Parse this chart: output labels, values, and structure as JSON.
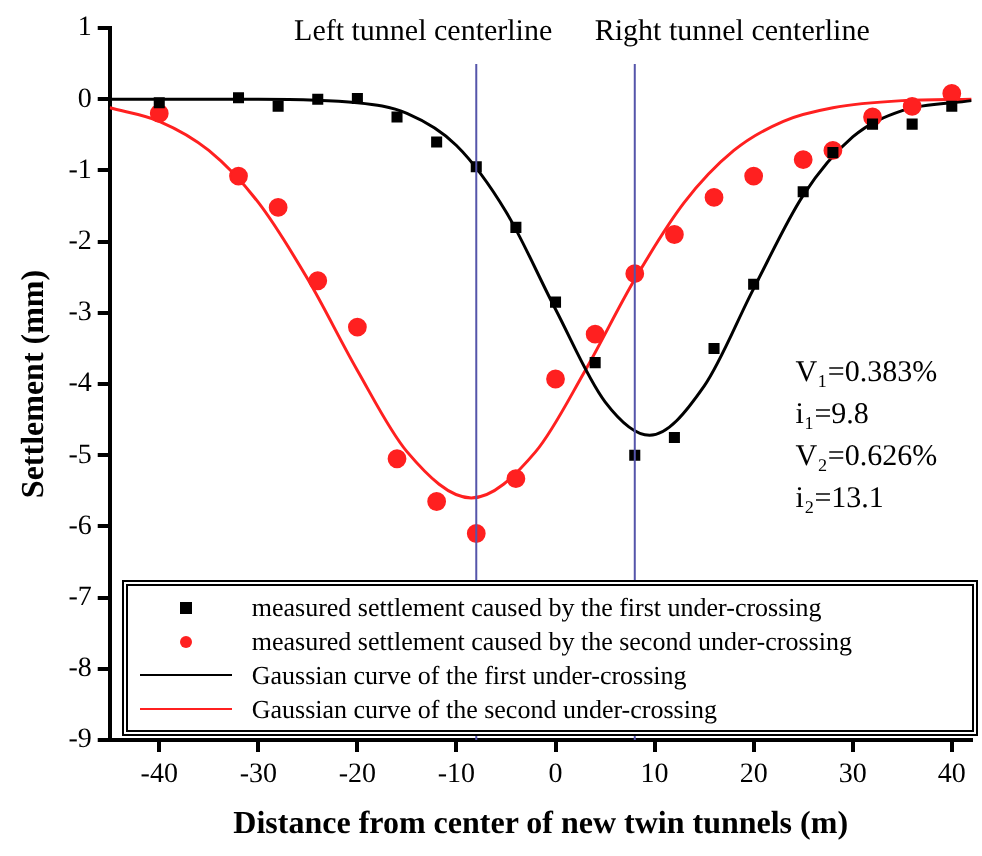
{
  "chart_data": {
    "type": "scatter",
    "xlabel": "Distance from center of new twin tunnels (m)",
    "ylabel": "Settlement (mm)",
    "xlim": [
      -45,
      42
    ],
    "xticks": [
      -40,
      -30,
      -20,
      -10,
      0,
      10,
      20,
      30,
      40
    ],
    "ylim": [
      -9,
      1
    ],
    "yticks": [
      -9,
      -8,
      -7,
      -6,
      -5,
      -4,
      -3,
      -2,
      -1,
      0,
      1
    ],
    "grid": false,
    "legend": "bottom",
    "series": [
      {
        "name": "measured settlement caused by the first under-crossing",
        "marker": "square",
        "color": "#000000",
        "x": [
          -40,
          -32,
          -28,
          -24,
          -20,
          -16,
          -12,
          -8,
          -4,
          0,
          4,
          8,
          12,
          16,
          20,
          25,
          28,
          32,
          36,
          40
        ],
        "values": [
          -0.05,
          0.02,
          -0.1,
          0,
          0.01,
          -0.25,
          -0.6,
          -0.95,
          -1.8,
          -2.85,
          -3.7,
          -5.0,
          -4.75,
          -3.5,
          -2.6,
          -1.3,
          -0.75,
          -0.35,
          -0.35,
          -0.1
        ]
      },
      {
        "name": "measured settlement caused by the second under-crossing",
        "marker": "circle",
        "color": "#ff2020",
        "x": [
          -40,
          -32,
          -28,
          -24,
          -20,
          -16,
          -12,
          -8,
          -4,
          0,
          4,
          8,
          12,
          16,
          20,
          25,
          28,
          32,
          36,
          40
        ],
        "values": [
          -0.2,
          -1.08,
          -1.52,
          -2.55,
          -3.2,
          -5.05,
          -5.65,
          -6.1,
          -5.33,
          -3.93,
          -3.3,
          -2.45,
          -1.9,
          -1.38,
          -1.08,
          -0.85,
          -0.72,
          -0.25,
          -0.1,
          0.08
        ]
      },
      {
        "name": "Gaussian curve of the first under-crossing",
        "type": "line",
        "marker": "none",
        "color": "#000000",
        "x": [
          -45,
          -30,
          -20,
          -15,
          -10,
          -5,
          0,
          5,
          9.5,
          15,
          20,
          25,
          30,
          35,
          42
        ],
        "values": [
          0,
          0,
          -0.05,
          -0.2,
          -0.65,
          -1.58,
          -2.95,
          -4.25,
          -4.72,
          -4.03,
          -2.66,
          -1.35,
          -0.53,
          -0.16,
          -0.02
        ]
      },
      {
        "name": "Gaussian curve of the second under-crossing",
        "type": "line",
        "marker": "none",
        "color": "#ff2020",
        "x": [
          -45,
          -40,
          -35,
          -30,
          -25,
          -20,
          -15,
          -8.5,
          -2,
          3,
          8,
          13,
          18,
          23,
          28,
          35,
          42
        ],
        "values": [
          -0.12,
          -0.31,
          -0.72,
          -1.45,
          -2.53,
          -3.81,
          -4.95,
          -5.6,
          -4.95,
          -3.81,
          -2.53,
          -1.45,
          -0.72,
          -0.31,
          -0.12,
          -0.02,
          0
        ]
      }
    ],
    "ref_lines": [
      {
        "axis": "x",
        "value": -8,
        "label": "Left tunnel centerline",
        "color": "#5555aa"
      },
      {
        "axis": "x",
        "value": 8,
        "label": "Right tunnel centerline",
        "color": "#5555aa"
      }
    ],
    "annotations": [
      "V₁=0.383%",
      "i₁=9.8",
      "V₂=0.626%",
      "i₂=13.1"
    ]
  }
}
